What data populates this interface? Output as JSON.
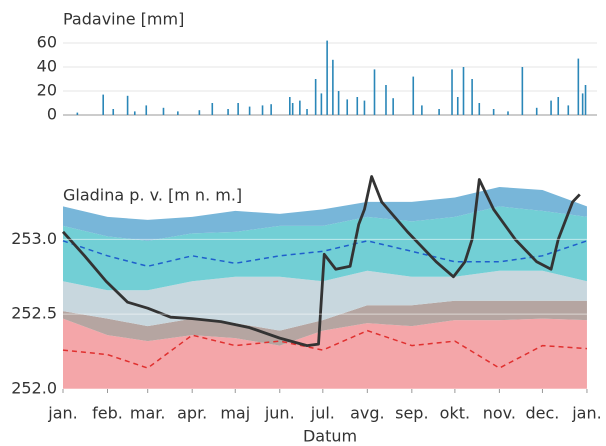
{
  "chart_data": [
    {
      "type": "bar",
      "title": "Padavine [mm]",
      "color": "#2a87b8",
      "x": [
        10,
        28,
        35,
        45,
        50,
        58,
        70,
        80,
        95,
        104,
        115,
        122,
        130,
        139,
        145,
        158,
        160,
        165,
        170,
        176,
        180,
        184,
        188,
        192,
        198,
        205,
        210,
        217,
        225,
        230,
        244,
        250,
        262,
        271,
        275,
        279,
        285,
        290,
        300,
        310,
        320,
        330,
        340,
        345,
        352,
        359,
        362,
        364
      ],
      "values": [
        2,
        17,
        5,
        16,
        3,
        8,
        6,
        3,
        4,
        10,
        5,
        10,
        7,
        8,
        9,
        15,
        10,
        12,
        5,
        30,
        18,
        62,
        46,
        20,
        13,
        15,
        12,
        38,
        25,
        14,
        32,
        8,
        5,
        38,
        15,
        40,
        30,
        10,
        5,
        3,
        40,
        6,
        12,
        15,
        8,
        47,
        18,
        25
      ],
      "xlim": [
        0,
        372
      ],
      "ylim": [
        0,
        65
      ],
      "yticks": [
        0,
        20,
        40,
        60
      ],
      "grid": true
    },
    {
      "type": "band-line",
      "title": "Gladina p. v. [m n. m.]",
      "xlabel": "Datum",
      "x": [
        0,
        31,
        59,
        90,
        120,
        151,
        181,
        212,
        243,
        273,
        304,
        334,
        365
      ],
      "series": [
        {
          "style": "band",
          "color": "#f4a6a9",
          "values": [
            252.47,
            252.36,
            252.32,
            252.36,
            252.34,
            252.29,
            252.39,
            252.44,
            252.42,
            252.46,
            252.46,
            252.47,
            252.46
          ]
        },
        {
          "style": "band",
          "color": "#b5a5a1",
          "values": [
            252.52,
            252.47,
            252.42,
            252.47,
            252.44,
            252.39,
            252.46,
            252.56,
            252.56,
            252.59,
            252.59,
            252.59,
            252.59
          ]
        },
        {
          "style": "band",
          "color": "#c8d7de",
          "values": [
            252.72,
            252.66,
            252.66,
            252.72,
            252.75,
            252.75,
            252.72,
            252.79,
            252.75,
            252.75,
            252.79,
            252.79,
            252.72
          ]
        },
        {
          "style": "band",
          "color": "#72cfd5",
          "values": [
            253.09,
            253.02,
            252.99,
            253.04,
            253.05,
            253.09,
            253.09,
            253.15,
            253.12,
            253.15,
            253.22,
            253.19,
            253.15
          ]
        },
        {
          "style": "band",
          "color": "#78b6d9",
          "values": [
            253.22,
            253.15,
            253.13,
            253.15,
            253.19,
            253.17,
            253.2,
            253.25,
            253.25,
            253.28,
            253.35,
            253.33,
            253.22
          ]
        },
        {
          "style": "dashed",
          "color": "#1f5fcc",
          "values": [
            252.99,
            252.89,
            252.82,
            252.89,
            252.84,
            252.89,
            252.92,
            252.99,
            252.92,
            252.85,
            252.85,
            252.89,
            252.99
          ]
        },
        {
          "style": "dashed",
          "color": "#e0302f",
          "values": [
            252.26,
            252.23,
            252.14,
            252.36,
            252.29,
            252.32,
            252.26,
            252.39,
            252.29,
            252.32,
            252.14,
            252.29,
            252.27
          ]
        },
        {
          "style": "solid",
          "color": "#333333",
          "x": [
            0,
            15,
            30,
            45,
            59,
            75,
            90,
            110,
            130,
            151,
            170,
            178,
            180,
            182,
            190,
            200,
            206,
            210,
            215,
            222,
            240,
            260,
            272,
            280,
            285,
            290,
            300,
            315,
            330,
            340,
            345,
            355,
            360
          ],
          "values": [
            253.05,
            252.89,
            252.72,
            252.58,
            252.54,
            252.48,
            252.47,
            252.45,
            252.41,
            252.34,
            252.29,
            252.3,
            252.6,
            252.9,
            252.8,
            252.82,
            253.1,
            253.2,
            253.42,
            253.25,
            253.05,
            252.85,
            252.75,
            252.85,
            253.0,
            253.4,
            253.2,
            253.0,
            252.85,
            252.8,
            253.0,
            253.25,
            253.3
          ]
        }
      ],
      "xlim": [
        0,
        372
      ],
      "ylim": [
        252.0,
        253.43
      ],
      "yticks": [
        {
          "value": 252.0,
          "label": "252.0"
        },
        252.5,
        {
          "value": 253.0,
          "label": "253.0"
        }
      ],
      "xticks": [
        {
          "value": 0,
          "label": "jan."
        },
        {
          "value": 31,
          "label": "feb."
        },
        {
          "value": 59,
          "label": "mar."
        },
        {
          "value": 90,
          "label": "apr."
        },
        {
          "value": 120,
          "label": "maj"
        },
        {
          "value": 151,
          "label": "jun."
        },
        {
          "value": 181,
          "label": "jul."
        },
        {
          "value": 212,
          "label": "avg."
        },
        {
          "value": 243,
          "label": "sep."
        },
        {
          "value": 273,
          "label": "okt."
        },
        {
          "value": 304,
          "label": "nov."
        },
        {
          "value": 334,
          "label": "dec."
        },
        {
          "value": 365,
          "label": "jan."
        }
      ],
      "grid": true
    }
  ]
}
